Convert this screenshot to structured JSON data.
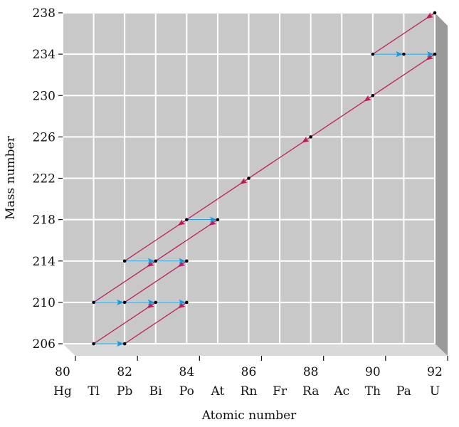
{
  "chart_data": {
    "type": "scatter",
    "xlabel": "Atomic number",
    "ylabel": "Mass number",
    "xlim": [
      80,
      92
    ],
    "ylim": [
      206,
      238
    ],
    "x_ticks": [
      80,
      82,
      84,
      86,
      88,
      90,
      92
    ],
    "y_ticks": [
      206,
      210,
      214,
      218,
      222,
      226,
      230,
      234,
      238
    ],
    "element_labels": [
      {
        "z": 80,
        "symbol": "Hg"
      },
      {
        "z": 81,
        "symbol": "Tl"
      },
      {
        "z": 82,
        "symbol": "Pb"
      },
      {
        "z": 83,
        "symbol": "Bi"
      },
      {
        "z": 84,
        "symbol": "Po"
      },
      {
        "z": 85,
        "symbol": "At"
      },
      {
        "z": 86,
        "symbol": "Rn"
      },
      {
        "z": 87,
        "symbol": "Fr"
      },
      {
        "z": 88,
        "symbol": "Ra"
      },
      {
        "z": 89,
        "symbol": "Ac"
      },
      {
        "z": 90,
        "symbol": "Th"
      },
      {
        "z": 91,
        "symbol": "Pa"
      },
      {
        "z": 92,
        "symbol": "U"
      }
    ],
    "nuclides": [
      [
        92,
        238
      ],
      [
        90,
        234
      ],
      [
        91,
        234
      ],
      [
        92,
        234
      ],
      [
        90,
        230
      ],
      [
        88,
        226
      ],
      [
        86,
        222
      ],
      [
        84,
        218
      ],
      [
        85,
        218
      ],
      [
        82,
        214
      ],
      [
        83,
        214
      ],
      [
        84,
        214
      ],
      [
        81,
        210
      ],
      [
        82,
        210
      ],
      [
        83,
        210
      ],
      [
        84,
        210
      ],
      [
        81,
        206
      ],
      [
        82,
        206
      ]
    ],
    "alpha_decays": [
      {
        "from": [
          92,
          238
        ],
        "to": [
          90,
          234
        ]
      },
      {
        "from": [
          92,
          234
        ],
        "to": [
          90,
          230
        ]
      },
      {
        "from": [
          90,
          230
        ],
        "to": [
          88,
          226
        ]
      },
      {
        "from": [
          88,
          226
        ],
        "to": [
          86,
          222
        ]
      },
      {
        "from": [
          86,
          222
        ],
        "to": [
          84,
          218
        ]
      },
      {
        "from": [
          84,
          218
        ],
        "to": [
          82,
          214
        ]
      },
      {
        "from": [
          85,
          218
        ],
        "to": [
          83,
          214
        ]
      },
      {
        "from": [
          84,
          214
        ],
        "to": [
          82,
          210
        ]
      },
      {
        "from": [
          83,
          214
        ],
        "to": [
          81,
          210
        ]
      },
      {
        "from": [
          83,
          210
        ],
        "to": [
          81,
          206
        ]
      },
      {
        "from": [
          84,
          210
        ],
        "to": [
          82,
          206
        ]
      }
    ],
    "beta_decays": [
      {
        "from": [
          90,
          234
        ],
        "to": [
          91,
          234
        ]
      },
      {
        "from": [
          91,
          234
        ],
        "to": [
          92,
          234
        ]
      },
      {
        "from": [
          84,
          218
        ],
        "to": [
          85,
          218
        ]
      },
      {
        "from": [
          82,
          214
        ],
        "to": [
          83,
          214
        ]
      },
      {
        "from": [
          83,
          214
        ],
        "to": [
          84,
          214
        ]
      },
      {
        "from": [
          81,
          210
        ],
        "to": [
          82,
          210
        ]
      },
      {
        "from": [
          82,
          210
        ],
        "to": [
          83,
          210
        ]
      },
      {
        "from": [
          83,
          210
        ],
        "to": [
          84,
          210
        ]
      },
      {
        "from": [
          81,
          206
        ],
        "to": [
          82,
          206
        ]
      }
    ],
    "colors": {
      "plot_background": "#c8c8c8",
      "grid": "#ffffff",
      "panel_side": "#9a9a9a",
      "panel_bottom": "#d9d9d9",
      "alpha_arrow": "#c0185a",
      "beta_arrow": "#1a9bd7",
      "nuclide": "#000000"
    }
  }
}
